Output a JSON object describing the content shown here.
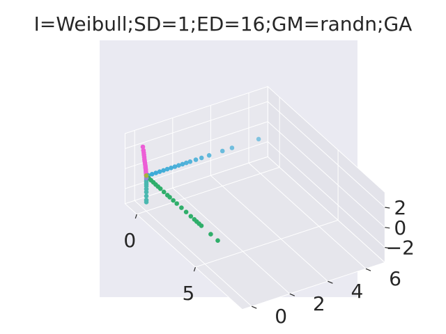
{
  "chart_data": {
    "type": "scatter",
    "projection": "3d",
    "title": "I=Weibull;SD=1;ED=16;GM=randn;GA",
    "xlabel": "",
    "ylabel": "",
    "zlabel": "",
    "x_ticks": [
      "0",
      "5"
    ],
    "y_ticks": [
      "0",
      "2",
      "4",
      "6"
    ],
    "z_ticks": [
      "2",
      "0",
      "−2"
    ],
    "xlim": [
      -1,
      9
    ],
    "ylim": [
      -0.5,
      7
    ],
    "zlim": [
      -3.5,
      3.5
    ],
    "grid": true,
    "legend": "none",
    "background": "#eaeaf2",
    "series": [
      {
        "color": "#ec5fd6",
        "x": [
          -0.3,
          -0.25,
          -0.22,
          -0.2,
          -0.18,
          -0.16,
          -0.14,
          -0.12,
          -0.1,
          -0.08,
          -0.07,
          -0.05,
          -0.04,
          -0.03,
          -0.02,
          -0.01,
          0.0
        ],
        "y": [
          0,
          0,
          0,
          0,
          0,
          0,
          0,
          0,
          0,
          0,
          0,
          0,
          0,
          0,
          0,
          0,
          0
        ],
        "z": [
          2.6,
          2.3,
          2.1,
          1.9,
          1.7,
          1.5,
          1.35,
          1.2,
          1.05,
          0.9,
          0.75,
          0.6,
          0.45,
          0.3,
          0.2,
          0.1,
          0.0
        ]
      },
      {
        "color": "#38a9d6",
        "x": [
          0,
          0,
          0,
          0,
          0,
          0,
          0,
          0,
          0,
          0,
          0,
          0,
          0,
          0,
          0,
          0,
          0,
          0
        ],
        "y": [
          0.1,
          0.3,
          0.5,
          0.7,
          0.9,
          1.1,
          1.3,
          1.5,
          1.7,
          1.9,
          2.1,
          2.3,
          2.6,
          2.9,
          3.3,
          4.0,
          4.5,
          5.9
        ],
        "z": [
          0,
          0,
          0,
          0,
          0,
          0,
          0,
          0,
          0,
          0,
          0,
          0,
          0,
          0,
          0,
          0,
          0,
          0
        ]
      },
      {
        "color": "#4ab8b0",
        "x": [
          0,
          0,
          0,
          0,
          0,
          0,
          0,
          0,
          0
        ],
        "y": [
          0,
          0,
          0,
          0,
          0,
          0,
          0,
          0,
          0
        ],
        "z": [
          -0.4,
          -0.6,
          -0.8,
          -1.0,
          -1.3,
          -1.6,
          -2.0,
          -2.4,
          -2.6
        ]
      },
      {
        "color": "#2fae6a",
        "x": [
          0.2,
          0.4,
          0.6,
          0.8,
          1.0,
          1.2,
          1.5,
          1.8,
          2.0,
          2.3,
          2.6,
          3.0,
          3.4,
          3.8,
          4.1,
          4.3,
          4.5,
          4.7,
          5.5,
          6.1
        ],
        "y": [
          0,
          0,
          0,
          0,
          0,
          0,
          0,
          0,
          0,
          0,
          0,
          0,
          0,
          0,
          0,
          0,
          0,
          0,
          0,
          0
        ],
        "z": [
          0,
          0,
          0,
          0,
          0,
          0,
          0,
          0,
          0,
          0,
          0,
          0,
          0,
          0,
          0,
          0,
          0,
          0,
          0,
          0
        ]
      },
      {
        "color": "#8e8ad6",
        "x": [
          0
        ],
        "y": [
          0
        ],
        "z": [
          -0.2
        ]
      },
      {
        "color": "#a7b23c",
        "x": [
          0
        ],
        "y": [
          0
        ],
        "z": [
          0.05
        ]
      }
    ]
  }
}
